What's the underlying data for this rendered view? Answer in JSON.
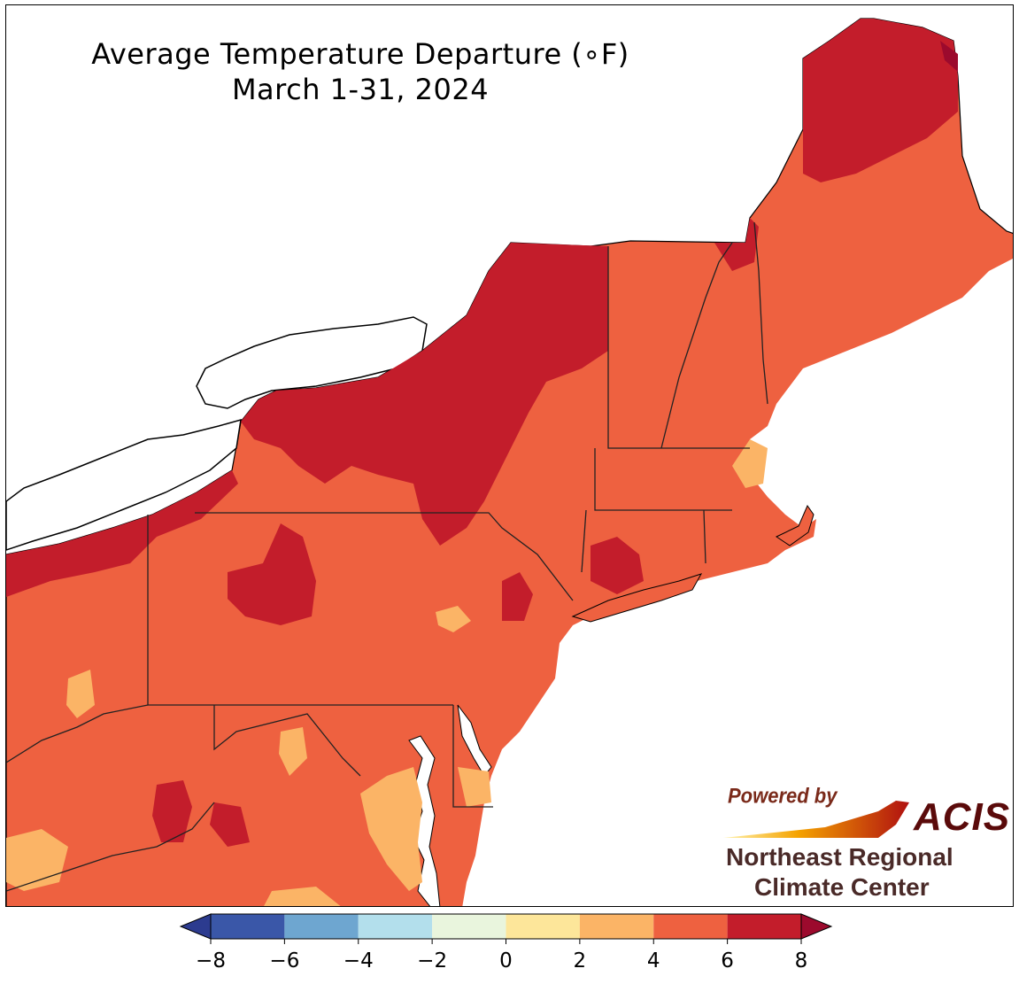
{
  "title": {
    "line1": "Average Temperature Departure (∘F)",
    "line2": "March 1-31, 2024"
  },
  "logo": {
    "powered_by": "Powered by",
    "brand": "ACIS",
    "org_line1": "Northeast Regional",
    "org_line2": "Climate Center"
  },
  "colorbar": {
    "ticks": [
      "−8",
      "−6",
      "−4",
      "−2",
      "0",
      "2",
      "4",
      "6",
      "8"
    ],
    "bins": [
      {
        "from": -8,
        "to": -6,
        "color": "#3a57a8"
      },
      {
        "from": -6,
        "to": -4,
        "color": "#6ea6d0"
      },
      {
        "from": -4,
        "to": -2,
        "color": "#b3dfec"
      },
      {
        "from": -2,
        "to": 0,
        "color": "#e9f5dd"
      },
      {
        "from": 0,
        "to": 2,
        "color": "#fde69a"
      },
      {
        "from": 2,
        "to": 4,
        "color": "#fbb466"
      },
      {
        "from": 4,
        "to": 6,
        "color": "#ee6140"
      },
      {
        "from": 6,
        "to": 8,
        "color": "#c31d2b"
      }
    ],
    "under_color": "#2c3b8f",
    "over_color": "#9c0a2d"
  },
  "map_colors": {
    "bin_2_4": "#fbb466",
    "bin_4_6": "#ee6140",
    "bin_6_8": "#c31d2b",
    "bin_over_8": "#9c0a2d",
    "water": "#ffffff",
    "border": "#222222"
  }
}
